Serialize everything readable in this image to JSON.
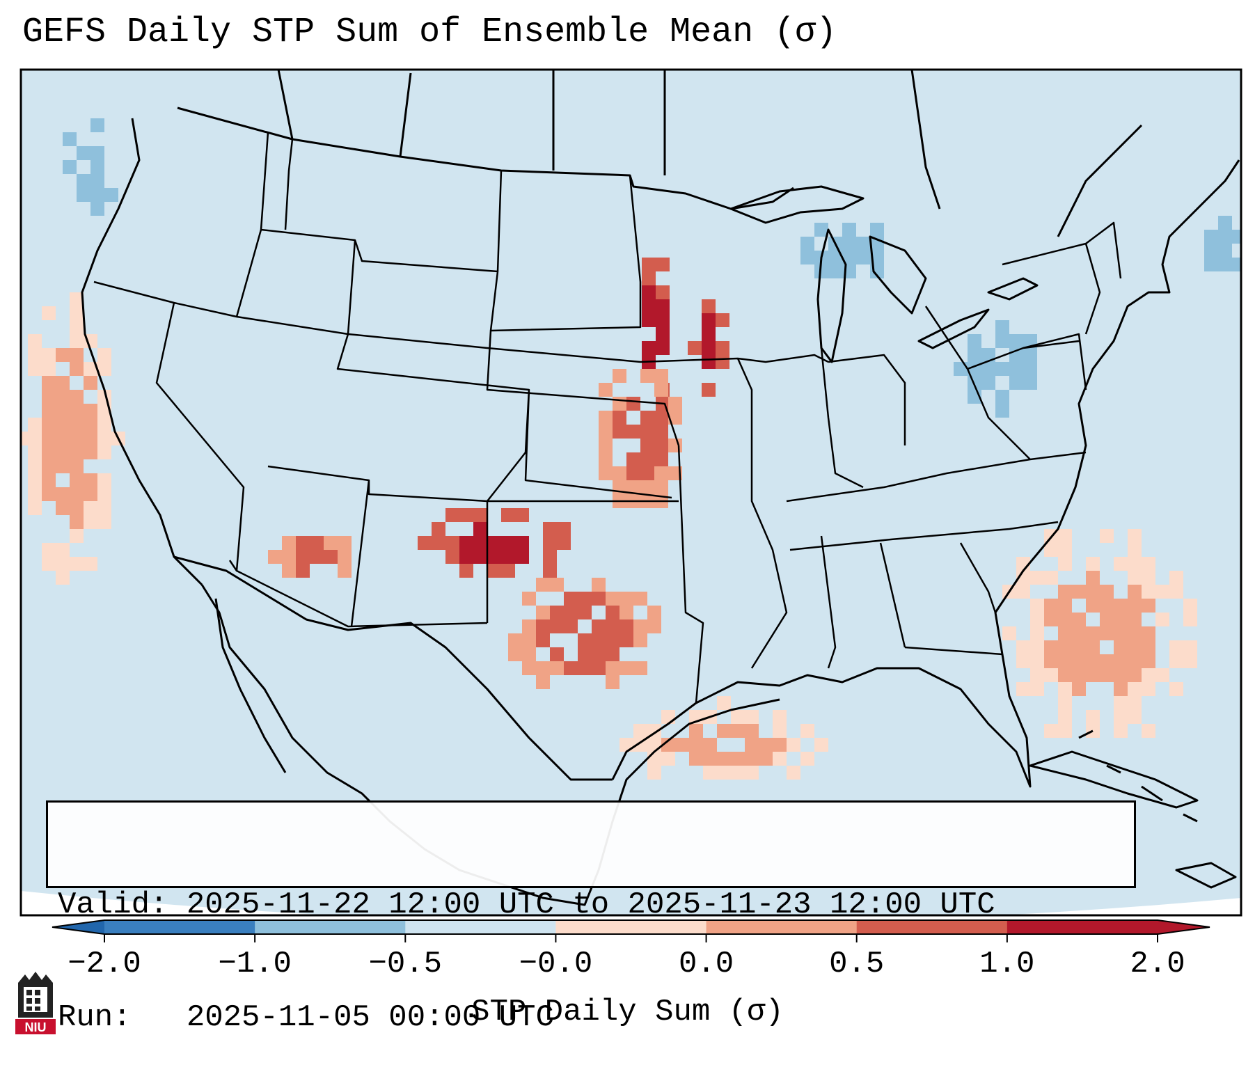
{
  "title": "GEFS Daily STP Sum of Ensemble Mean (σ)",
  "info": {
    "valid_label": "Valid:",
    "valid_value": "2025-11-22 12:00 UTC to 2025-11-23 12:00 UTC",
    "run_label": "Run:",
    "run_value": "2025-11-05 00:00 UTC"
  },
  "colorbar": {
    "label": "STP Daily Sum (σ)",
    "ticks": [
      "−2.0",
      "−1.0",
      "−0.5",
      "−0.0",
      "0.0",
      "0.5",
      "1.0",
      "2.0"
    ],
    "colors": [
      "#3a7fbf",
      "#8fc0dc",
      "#cfe4f0",
      "#f7f7f7",
      "#fcdccb",
      "#f0a386",
      "#d35d4e",
      "#b2182b"
    ],
    "under_color": "#2166ac",
    "over_color": "#b2182b",
    "extend": "both"
  },
  "map": {
    "background_color": "#d1e5f0",
    "outline_color": "#000000",
    "projection": "lambert-conformal",
    "region": "CONUS",
    "anomaly_regions": [
      {
        "area": "Nebraska-Iowa border",
        "level": "2.0"
      },
      {
        "area": "Eastern Nebraska",
        "level": "2.0"
      },
      {
        "area": "Western Oklahoma / Texas Panhandle",
        "level": "2.0"
      },
      {
        "area": "Eastern Kansas",
        "level": "1.0"
      },
      {
        "area": "North Texas",
        "level": "1.0"
      },
      {
        "area": "Southwestern Arizona",
        "level": "1.0"
      },
      {
        "area": "Gulf of Mexico",
        "level": "0.5"
      },
      {
        "area": "Pacific offshore California",
        "level": "0.5"
      },
      {
        "area": "Atlantic offshore Southeast",
        "level": "0.5"
      },
      {
        "area": "Great Lakes / Michigan",
        "level": "−0.5"
      },
      {
        "area": "Pennsylvania / New York",
        "level": "−0.5"
      },
      {
        "area": "Pacific Northwest offshore",
        "level": "−0.5"
      },
      {
        "area": "Gulf of Maine",
        "level": "−0.5"
      }
    ]
  },
  "logo": {
    "text": "NIU",
    "color": "#c8102e"
  }
}
